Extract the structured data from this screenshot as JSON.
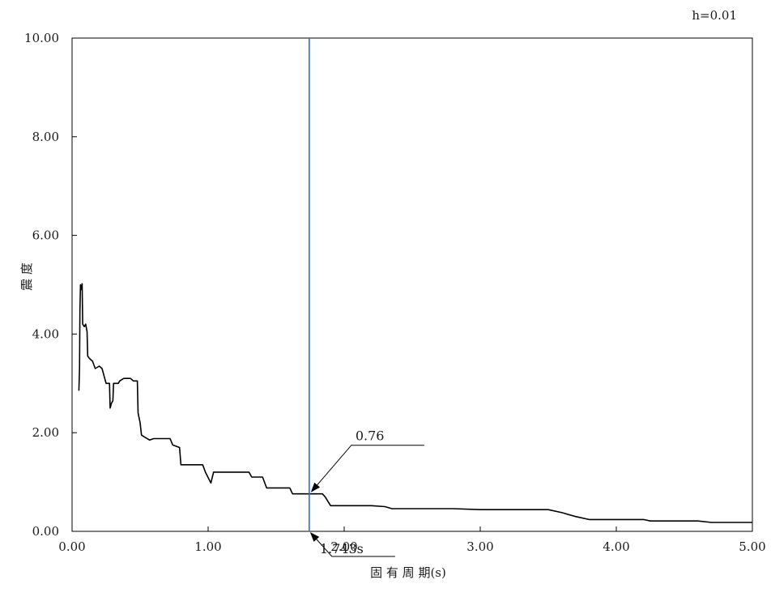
{
  "chart_data": {
    "type": "line",
    "title": "",
    "note": "h=0.01",
    "xlabel": "固 有 周 期(s)",
    "ylabel": "震 度",
    "xlim": [
      0,
      5
    ],
    "ylim": [
      0,
      10
    ],
    "x_ticks": [
      "0.00",
      "1.00",
      "2.00",
      "3.00",
      "4.00",
      "5.00"
    ],
    "y_ticks": [
      "0.00",
      "2.00",
      "4.00",
      "6.00",
      "8.00",
      "10.00"
    ],
    "grid": false,
    "series": [
      {
        "color": "#000000",
        "points": [
          [
            0.05,
            2.85
          ],
          [
            0.055,
            3.3
          ],
          [
            0.058,
            4.5
          ],
          [
            0.062,
            5.0
          ],
          [
            0.07,
            4.9
          ],
          [
            0.074,
            5.02
          ],
          [
            0.078,
            4.2
          ],
          [
            0.09,
            4.15
          ],
          [
            0.1,
            4.2
          ],
          [
            0.11,
            4.05
          ],
          [
            0.115,
            3.55
          ],
          [
            0.13,
            3.5
          ],
          [
            0.15,
            3.45
          ],
          [
            0.17,
            3.3
          ],
          [
            0.2,
            3.35
          ],
          [
            0.22,
            3.3
          ],
          [
            0.25,
            3.0
          ],
          [
            0.275,
            3.0
          ],
          [
            0.28,
            2.5
          ],
          [
            0.29,
            2.6
          ],
          [
            0.3,
            2.65
          ],
          [
            0.305,
            3.0
          ],
          [
            0.34,
            3.0
          ],
          [
            0.35,
            3.05
          ],
          [
            0.38,
            3.1
          ],
          [
            0.43,
            3.1
          ],
          [
            0.45,
            3.05
          ],
          [
            0.48,
            3.05
          ],
          [
            0.485,
            2.4
          ],
          [
            0.5,
            2.2
          ],
          [
            0.51,
            1.95
          ],
          [
            0.54,
            1.9
          ],
          [
            0.57,
            1.85
          ],
          [
            0.6,
            1.88
          ],
          [
            0.72,
            1.88
          ],
          [
            0.74,
            1.75
          ],
          [
            0.79,
            1.7
          ],
          [
            0.8,
            1.35
          ],
          [
            0.96,
            1.35
          ],
          [
            0.98,
            1.2
          ],
          [
            1.02,
            0.98
          ],
          [
            1.04,
            1.2
          ],
          [
            1.3,
            1.2
          ],
          [
            1.32,
            1.1
          ],
          [
            1.4,
            1.1
          ],
          [
            1.43,
            0.88
          ],
          [
            1.6,
            0.88
          ],
          [
            1.62,
            0.76
          ],
          [
            1.84,
            0.76
          ],
          [
            1.86,
            0.7
          ],
          [
            1.9,
            0.52
          ],
          [
            2.2,
            0.52
          ],
          [
            2.3,
            0.5
          ],
          [
            2.35,
            0.46
          ],
          [
            2.8,
            0.46
          ],
          [
            3.0,
            0.44
          ],
          [
            3.5,
            0.44
          ],
          [
            3.6,
            0.38
          ],
          [
            3.7,
            0.3
          ],
          [
            3.8,
            0.24
          ],
          [
            4.2,
            0.24
          ],
          [
            4.25,
            0.21
          ],
          [
            4.6,
            0.21
          ],
          [
            4.7,
            0.18
          ],
          [
            5.0,
            0.18
          ]
        ]
      }
    ],
    "reference_line": {
      "x": 1.743,
      "color": "#2e6fd0"
    },
    "annotations": [
      {
        "text": "0.76",
        "x": 1.743,
        "y": 0.76
      },
      {
        "text": "1.743s",
        "x": 1.743,
        "y": 0
      }
    ]
  }
}
